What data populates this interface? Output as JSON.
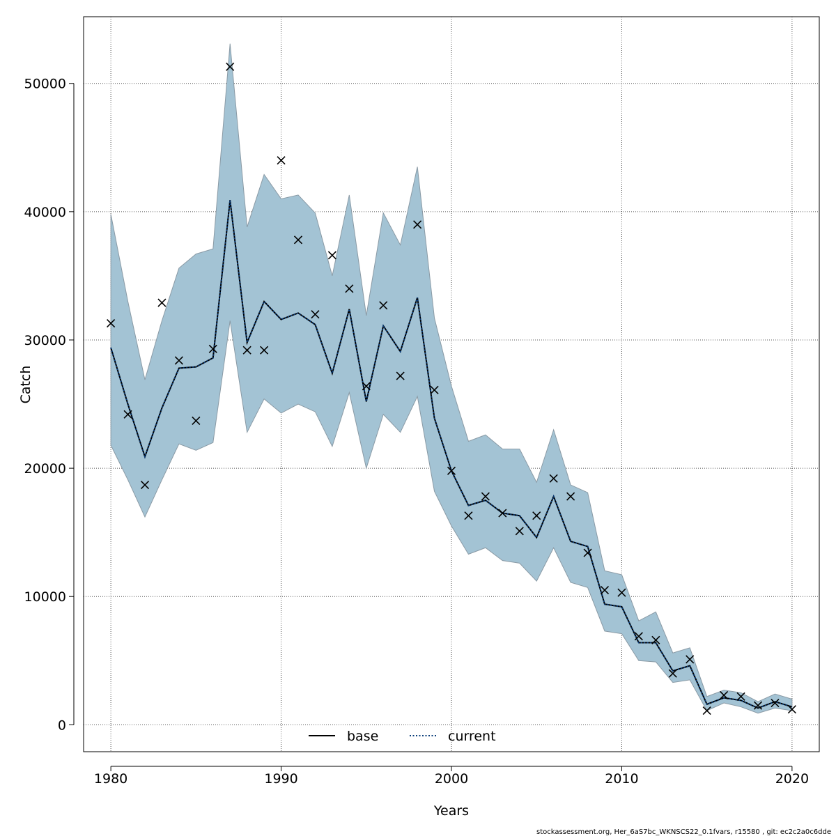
{
  "chart_data": {
    "type": "line",
    "xlabel": "Years",
    "ylabel": "Catch",
    "xlim": [
      1978.4,
      2021.6
    ],
    "ylim": [
      -2100,
      55200
    ],
    "x_ticks": [
      1980,
      1990,
      2000,
      2010,
      2020
    ],
    "y_ticks": [
      0,
      10000,
      20000,
      30000,
      40000,
      50000
    ],
    "grid": true,
    "legend_position": "bottom",
    "years": [
      1980,
      1981,
      1982,
      1983,
      1984,
      1985,
      1986,
      1987,
      1988,
      1989,
      1990,
      1991,
      1992,
      1993,
      1994,
      1995,
      1996,
      1997,
      1998,
      1999,
      2000,
      2001,
      2002,
      2003,
      2004,
      2005,
      2006,
      2007,
      2008,
      2009,
      2010,
      2011,
      2012,
      2013,
      2014,
      2015,
      2016,
      2017,
      2018,
      2019,
      2020
    ],
    "band": {
      "upper": [
        39800,
        33000,
        26900,
        31500,
        35600,
        36700,
        37100,
        53100,
        38800,
        42900,
        41000,
        41300,
        39900,
        35000,
        41300,
        31900,
        39900,
        37400,
        43500,
        31700,
        26400,
        22100,
        22600,
        21500,
        21500,
        18900,
        23000,
        18700,
        18100,
        12000,
        11700,
        8100,
        8800,
        5600,
        6000,
        2200,
        2700,
        2500,
        1800,
        2400,
        2000
      ],
      "lower": [
        21800,
        19100,
        16200,
        19100,
        21900,
        21400,
        22000,
        31500,
        22800,
        25400,
        24300,
        25000,
        24400,
        21700,
        25900,
        20000,
        24200,
        22800,
        25600,
        18200,
        15500,
        13300,
        13800,
        12800,
        12600,
        11200,
        13800,
        11100,
        10700,
        7300,
        7100,
        5000,
        4900,
        3300,
        3500,
        1100,
        1700,
        1400,
        900,
        1300,
        1100
      ],
      "color": "#a3c3d4",
      "edge_color": "#8a9aa5"
    },
    "series": [
      {
        "name": "base",
        "color": "#000000",
        "style": "solid",
        "values": [
          29400,
          25000,
          20900,
          24700,
          27800,
          27900,
          28600,
          40900,
          29800,
          33000,
          31600,
          32100,
          31200,
          27400,
          32400,
          25200,
          31100,
          29100,
          33300,
          23900,
          19800,
          17100,
          17500,
          16500,
          16300,
          14600,
          17800,
          14300,
          13900,
          9400,
          9200,
          6400,
          6400,
          4200,
          4600,
          1600,
          2100,
          1900,
          1300,
          1800,
          1400
        ]
      },
      {
        "name": "current",
        "color": "#0a3d7a",
        "style": "dotted",
        "values": [
          29400,
          25000,
          20900,
          24700,
          27800,
          27900,
          28600,
          40900,
          29800,
          33000,
          31600,
          32100,
          31200,
          27400,
          32400,
          25200,
          31100,
          29100,
          33300,
          23900,
          19800,
          17100,
          17500,
          16500,
          16300,
          14600,
          17800,
          14300,
          13900,
          9400,
          9200,
          6400,
          6400,
          4200,
          4600,
          1600,
          2100,
          1900,
          1300,
          1800,
          1400
        ]
      }
    ],
    "observed": {
      "marker": "x",
      "values": [
        31300,
        24200,
        18700,
        32900,
        28400,
        23700,
        29300,
        51300,
        29200,
        29200,
        44000,
        37800,
        32000,
        36600,
        34000,
        26400,
        32700,
        27200,
        39000,
        26100,
        19800,
        16300,
        17800,
        16500,
        15100,
        16300,
        19200,
        17800,
        13400,
        10500,
        10300,
        6900,
        6600,
        4000,
        5100,
        1100,
        2300,
        2200,
        1500,
        1700,
        1200
      ]
    },
    "footnote": "stockassessment.org, Her_6aS7bc_WKNSCS22_0.1fvars, r15580 , git: ec2c2a0c6dde"
  }
}
